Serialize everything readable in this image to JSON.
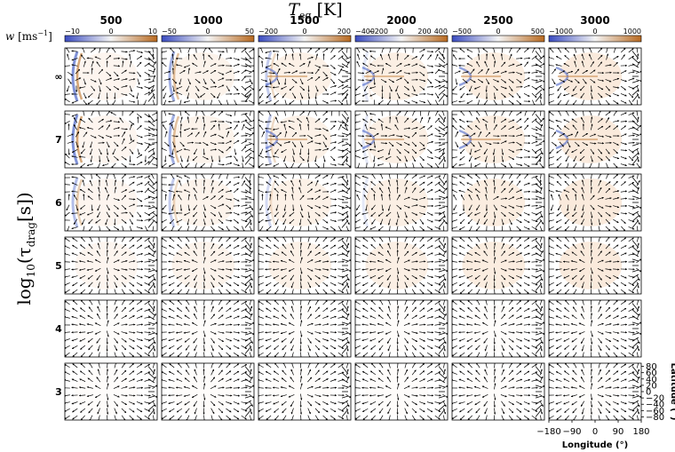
{
  "chart_data": {
    "type": "heatmap",
    "title": "T_eq [K]",
    "title_main": "T",
    "title_sub": "eq",
    "title_unit": " [K]",
    "colorbar_label": "w [ms",
    "colorbar_label_sup": "−1",
    "colorbar_label_close": "]",
    "ylabel_main": "log",
    "ylabel_sub": "10",
    "ylabel_tail": "(τ",
    "ylabel_sub2": "drag",
    "ylabel_end": "[s])",
    "columns": [
      {
        "teq": "500",
        "cbar_ticks": [
          "−10",
          "0",
          "10"
        ],
        "cbar_range": [
          -10,
          10
        ]
      },
      {
        "teq": "1000",
        "cbar_ticks": [
          "−50",
          "0",
          "50"
        ],
        "cbar_range": [
          -50,
          50
        ]
      },
      {
        "teq": "1500",
        "cbar_ticks": [
          "−200",
          "0",
          "200"
        ],
        "cbar_range": [
          -200,
          200
        ]
      },
      {
        "teq": "2000",
        "cbar_ticks": [
          "−400",
          "−200",
          "0",
          "200",
          "400"
        ],
        "cbar_range": [
          -400,
          400
        ]
      },
      {
        "teq": "2500",
        "cbar_ticks": [
          "−500",
          "0",
          "500"
        ],
        "cbar_range": [
          -500,
          500
        ]
      },
      {
        "teq": "3000",
        "cbar_ticks": [
          "−1000",
          "0",
          "1000"
        ],
        "cbar_range": [
          -1000,
          1000
        ]
      }
    ],
    "rows": [
      {
        "log_tau": "∞"
      },
      {
        "log_tau": "7"
      },
      {
        "log_tau": "6"
      },
      {
        "log_tau": "5"
      },
      {
        "log_tau": "4"
      },
      {
        "log_tau": "3"
      }
    ],
    "x_axis": {
      "label": "Longitude (°)",
      "ticks": [
        "−180",
        "−90",
        "0",
        "90",
        "180"
      ],
      "range": [
        -180,
        180
      ]
    },
    "y_axis": {
      "label": "Latitude (°)",
      "ticks": [
        "80",
        "60",
        "40",
        "20",
        "0",
        "−20",
        "−40",
        "−60",
        "−80"
      ],
      "range": [
        -90,
        90
      ]
    },
    "colormap": {
      "negative": "#3b4cc0",
      "zero": "#f7f7f7",
      "positive": "#c0772b"
    }
  }
}
